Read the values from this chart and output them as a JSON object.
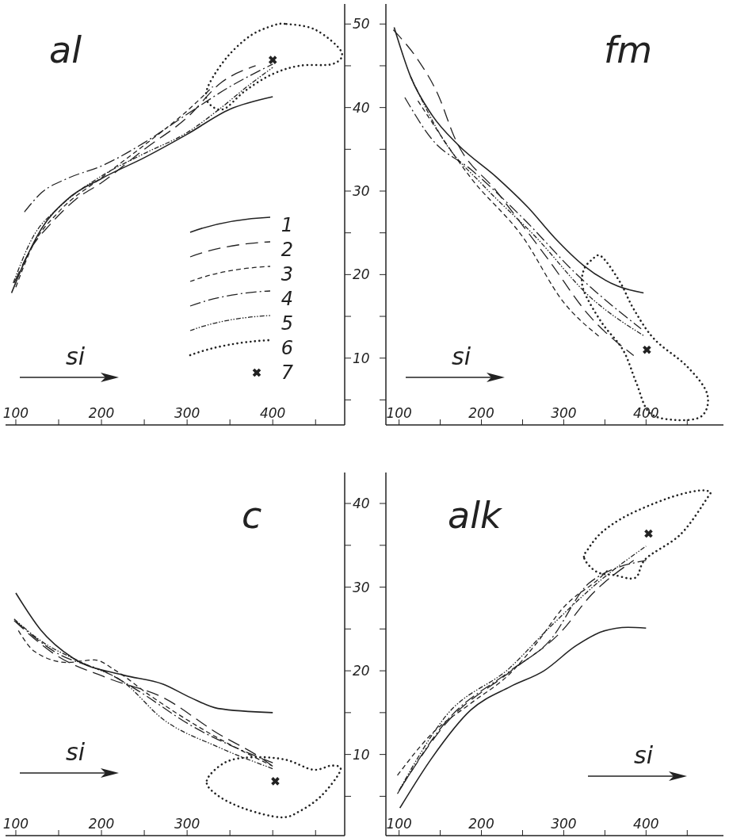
{
  "chart_data": [
    {
      "type": "line",
      "title": "al",
      "xlabel": "si",
      "annotations": [
        "6"
      ],
      "xlim": [
        88,
        484
      ],
      "xticks": [
        100,
        {
          "value": 150,
          "label": null
        },
        200,
        {
          "value": 250,
          "label": null
        },
        300,
        {
          "value": 350,
          "label": null
        },
        400,
        {
          "value": 450,
          "label": null
        }
      ],
      "ylim": [
        2,
        52.4
      ],
      "yticks": [
        {
          "value": 5,
          "label": null
        },
        10,
        {
          "value": 15,
          "label": null
        },
        20,
        {
          "value": 25,
          "label": null
        },
        30,
        {
          "value": 35,
          "label": null
        },
        40,
        {
          "value": 45,
          "label": null
        },
        50
      ],
      "legend": "bottom right",
      "series": [
        {
          "name": "1",
          "color": "#222222",
          "line_style": "solid",
          "x": [
            95,
            110,
            130,
            160,
            200,
            250,
            300,
            350,
            400
          ],
          "values": [
            17.8,
            21.5,
            25.5,
            29.0,
            31.5,
            34.0,
            36.8,
            39.8,
            41.3
          ]
        },
        {
          "name": "2",
          "color": "#222222",
          "line_style": "dashed",
          "x": [
            98,
            120,
            140,
            170,
            200,
            250,
            300,
            340,
            380
          ],
          "values": [
            19,
            23.5,
            26,
            29,
            31,
            35,
            38.8,
            43,
            45
          ]
        },
        {
          "name": "3",
          "color": "#222222",
          "line_style": "dashed",
          "x": [
            100,
            120,
            150,
            200,
            250,
            300,
            330
          ],
          "values": [
            18.5,
            23.5,
            27.5,
            31.6,
            35.5,
            39.6,
            42.5
          ]
        },
        {
          "name": "4",
          "color": "#222222",
          "line_style": "dashdot",
          "x": [
            110,
            130,
            160,
            200,
            250,
            300,
            350,
            400
          ],
          "values": [
            27.5,
            29.8,
            31.5,
            33,
            35.8,
            39.2,
            42.5,
            45.2
          ]
        },
        {
          "name": "5",
          "color": "#222222",
          "line_style": "dashdot",
          "x": [
            97,
            120,
            150,
            200,
            250,
            300,
            340,
            370,
            400
          ],
          "values": [
            19,
            24.5,
            28,
            31.8,
            34.5,
            37,
            40,
            42.5,
            44.8
          ]
        },
        {
          "name": "7",
          "type": "scatter",
          "marker": "cross",
          "color": "#222222",
          "x": [
            400
          ],
          "values": [
            45.7
          ]
        }
      ]
    },
    {
      "type": "line",
      "title": "fm",
      "xlabel": "si",
      "xlim": [
        84,
        494
      ],
      "xticks": [
        100,
        {
          "value": 150,
          "label": null
        },
        200,
        {
          "value": 250,
          "label": null
        },
        300,
        {
          "value": 350,
          "label": null
        },
        400,
        {
          "value": 450,
          "label": null
        }
      ],
      "ylim": [
        2,
        52.4
      ],
      "yticks": [
        {
          "value": 5,
          "label": null
        },
        10,
        {
          "value": 15,
          "label": null
        },
        20,
        {
          "value": 25,
          "label": null
        },
        30,
        {
          "value": 35,
          "label": null
        },
        40,
        {
          "value": 45,
          "label": null
        },
        50
      ],
      "tick_labels": "x",
      "series": [
        {
          "color": "#222222",
          "line_style": "solid",
          "x": [
            94,
            114,
            140,
            172,
            219,
            257,
            289,
            324,
            366,
            397
          ],
          "values": [
            49.6,
            43.7,
            39.1,
            35.5,
            31.6,
            28,
            24.4,
            21.1,
            18.6,
            17.8
          ]
        },
        {
          "color": "#222222",
          "line_style": "dashed",
          "x": [
            93,
            123,
            148,
            167,
            219,
            282,
            330,
            385
          ],
          "values": [
            49.3,
            45.7,
            41.4,
            36.5,
            29.9,
            21.7,
            15.2,
            10.3
          ]
        },
        {
          "color": "#222222",
          "line_style": "dashed",
          "x": [
            123,
            187,
            251,
            299,
            343
          ],
          "values": [
            40.8,
            31.6,
            24.4,
            16.8,
            12.6
          ]
        },
        {
          "color": "#222222",
          "line_style": "dashdot",
          "x": [
            107,
            140,
            187,
            251,
            315,
            394
          ],
          "values": [
            41.2,
            36.2,
            32.6,
            26.7,
            20.1,
            13.5
          ]
        },
        {
          "color": "#222222",
          "line_style": "dashdot",
          "x": [
            114,
            156,
            203,
            267,
            330,
            397
          ],
          "values": [
            43.7,
            35.8,
            30.6,
            24.4,
            17.5,
            12.7
          ]
        },
        {
          "type": "scatter",
          "marker": "cross",
          "color": "#222222",
          "x": [
            401
          ],
          "values": [
            11
          ]
        }
      ]
    },
    {
      "type": "line",
      "title": "c",
      "xlabel": "si",
      "xlim": [
        88,
        484
      ],
      "xticks": [
        100,
        {
          "value": 150,
          "label": null
        },
        200,
        {
          "value": 250,
          "label": null
        },
        300,
        {
          "value": 350,
          "label": null
        },
        {
          "value": 400,
          "label": null
        },
        {
          "value": 450,
          "label": null
        }
      ],
      "ylim": [
        0.3,
        43.7
      ],
      "yticks": [
        {
          "value": 5,
          "label": null
        },
        10,
        {
          "value": 15,
          "label": null
        },
        20,
        {
          "value": 25,
          "label": null
        },
        30,
        {
          "value": 35,
          "label": null
        },
        40
      ],
      "series": [
        {
          "color": "#222222",
          "line_style": "solid",
          "x": [
            100,
            129,
            167,
            225,
            272,
            304,
            336,
            400
          ],
          "values": [
            29.3,
            24.9,
            21.5,
            19.5,
            18.4,
            16.8,
            15.5,
            15
          ]
        },
        {
          "color": "#222222",
          "line_style": "dashed",
          "x": [
            98,
            145,
            208,
            272,
            336,
            383,
            400
          ],
          "values": [
            26,
            22,
            19.1,
            16.8,
            12.5,
            9.8,
            8.6
          ]
        },
        {
          "color": "#222222",
          "line_style": "dashed",
          "x": [
            103,
            122,
            160,
            192,
            217,
            256,
            320,
            400
          ],
          "values": [
            24.8,
            22.3,
            21,
            21.3,
            20,
            17.1,
            12.9,
            8.6
          ]
        },
        {
          "color": "#222222",
          "line_style": "dashdot",
          "x": [
            100,
            145,
            208,
            240,
            304,
            400
          ],
          "values": [
            25.9,
            22.3,
            19.7,
            17.8,
            13.5,
            9
          ]
        },
        {
          "color": "#222222",
          "line_style": "dashdot",
          "x": [
            98,
            129,
            177,
            225,
            272,
            336,
            400
          ],
          "values": [
            26.2,
            23.6,
            21,
            18.7,
            14.2,
            10.9,
            8.3
          ]
        },
        {
          "type": "scatter",
          "marker": "cross",
          "color": "#222222",
          "x": [
            403
          ],
          "values": [
            6.8
          ]
        }
      ]
    },
    {
      "type": "line",
      "title": "alk",
      "xlabel": "si",
      "xlim": [
        84,
        494
      ],
      "xticks": [
        100,
        {
          "value": 150,
          "label": null
        },
        200,
        {
          "value": 250,
          "label": null
        },
        300,
        {
          "value": 350,
          "label": null
        },
        400,
        {
          "value": 450,
          "label": null
        }
      ],
      "ylim": [
        0.3,
        43.7
      ],
      "yticks": [
        {
          "value": 5,
          "label": null
        },
        10,
        {
          "value": 15,
          "label": null
        },
        20,
        {
          "value": 25,
          "label": null
        },
        30,
        {
          "value": 35,
          "label": null
        },
        40
      ],
      "tick_labels": "x",
      "series": [
        {
          "color": "#222222",
          "line_style": "solid",
          "x": [
            101,
            140,
            187,
            235,
            276,
            315,
            347,
            378,
            400
          ],
          "values": [
            3.6,
            9.6,
            15.3,
            18.1,
            20,
            23,
            24.7,
            25.2,
            25.1
          ]
        },
        {
          "color": "#222222",
          "line_style": "dashed",
          "x": [
            102,
            156,
            235,
            299,
            331,
            385
          ],
          "values": [
            6,
            13.6,
            19.9,
            24.9,
            28.8,
            33.2
          ]
        },
        {
          "color": "#222222",
          "line_style": "dashed",
          "x": [
            98,
            140,
            187,
            235,
            267,
            299,
            347,
            353
          ],
          "values": [
            7.5,
            12.5,
            16.1,
            19.7,
            23.3,
            27.5,
            31.4,
            32
          ]
        },
        {
          "color": "#222222",
          "line_style": "dashdot",
          "x": [
            98,
            156,
            235,
            283,
            331,
            400
          ],
          "values": [
            5.3,
            13.8,
            20,
            23.6,
            30.5,
            33.2
          ]
        },
        {
          "color": "#222222",
          "line_style": "dashdot",
          "x": [
            100,
            156,
            235,
            283,
            347,
            400
          ],
          "values": [
            5.7,
            14.5,
            20.4,
            25.2,
            31,
            34.9
          ]
        },
        {
          "type": "scatter",
          "marker": "cross",
          "color": "#222222",
          "x": [
            403
          ],
          "values": [
            36.4
          ]
        }
      ]
    }
  ]
}
